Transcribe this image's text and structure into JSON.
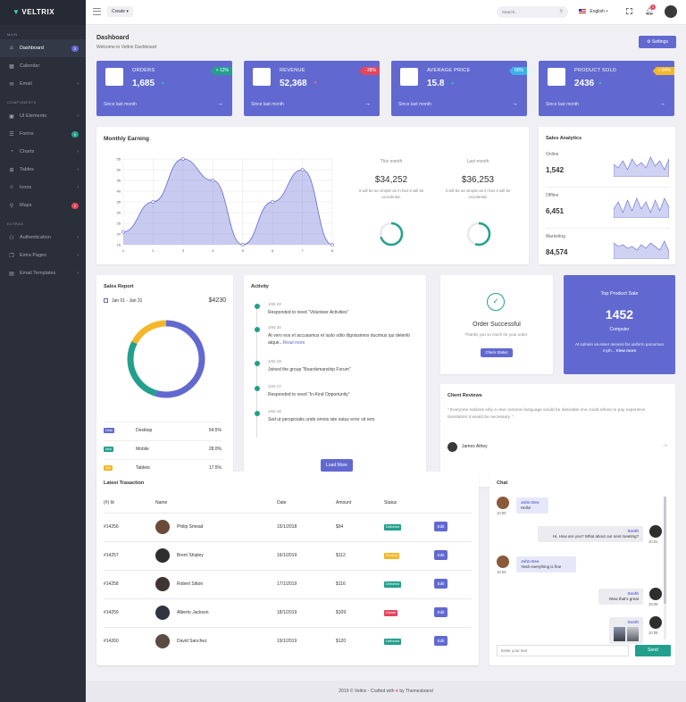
{
  "sidebar": {
    "logo": "VELTRIX",
    "sections": [
      {
        "label": "MAIN",
        "items": [
          {
            "label": "Dashboard",
            "icon": "home-icon",
            "badge": "3",
            "badge_color": "#6169d0",
            "active": true
          },
          {
            "label": "Calendar",
            "icon": "calendar-icon"
          },
          {
            "label": "Email",
            "icon": "mail-icon",
            "chev": true
          }
        ]
      },
      {
        "label": "COMPONENTS",
        "items": [
          {
            "label": "UI Elements",
            "icon": "box-icon",
            "chev": true
          },
          {
            "label": "Forms",
            "icon": "form-icon",
            "badge": "9",
            "badge_color": "#23a08d"
          },
          {
            "label": "Charts",
            "icon": "chart-icon",
            "chev": true
          },
          {
            "label": "Tables",
            "icon": "table-icon",
            "chev": true
          },
          {
            "label": "Icons",
            "icon": "smile-icon",
            "chev": true
          },
          {
            "label": "Maps",
            "icon": "map-pin-icon",
            "badge": "2",
            "badge_color": "#e3465c"
          }
        ]
      },
      {
        "label": "EXTRAS",
        "items": [
          {
            "label": "Authentication",
            "icon": "user-icon",
            "chev": true
          },
          {
            "label": "Extra Pages",
            "icon": "pages-icon",
            "chev": true
          },
          {
            "label": "Email Templates",
            "icon": "template-icon",
            "chev": true
          }
        ]
      }
    ]
  },
  "topbar": {
    "create_label": "Create",
    "search_placeholder": "Search..",
    "language": "English",
    "notification_count": "3"
  },
  "header": {
    "title": "Dashboard",
    "subtitle": "Welcome to Veltrix Dashboard",
    "settings_label": "Settings"
  },
  "stats": [
    {
      "title": "ORDERS",
      "value": "1,685",
      "trend": "up",
      "ribbon": "+ 12%",
      "ribbon_color": "#23a08d",
      "since": "Since last month",
      "icon": "cart-icon"
    },
    {
      "title": "REVENUE",
      "value": "52,368",
      "trend": "down",
      "ribbon": "- 28%",
      "ribbon_color": "#e3465c",
      "since": "Since last month",
      "icon": "copy-icon"
    },
    {
      "title": "AVERAGE PRICE",
      "value": "15.8",
      "trend": "up",
      "ribbon": "00%",
      "ribbon_color": "#3ab3e8",
      "since": "Since last month",
      "icon": "tag-icon"
    },
    {
      "title": "PRODUCT SOLD",
      "value": "2436",
      "trend": "up",
      "ribbon": "+ 84%",
      "ribbon_color": "#f4b728",
      "since": "Since last month",
      "icon": "briefcase-icon"
    }
  ],
  "monthly": {
    "title": "Monthly Earning",
    "this_month_label": "This month",
    "this_month_value": "$34,252",
    "last_month_label": "Last month",
    "last_month_value": "$36,253",
    "desc": "It will be as simple as in fact it will be occidental.",
    "this_month_progress": 0.7,
    "last_month_progress": 0.55
  },
  "chart_data": {
    "type": "area",
    "x": [
      1,
      2,
      3,
      4,
      5,
      6,
      7,
      8
    ],
    "values": [
      21,
      35,
      55,
      45,
      15,
      35,
      50,
      15
    ],
    "ylim": [
      15,
      55
    ],
    "yticks": [
      15,
      20,
      25,
      30,
      35,
      40,
      45,
      50,
      55
    ],
    "grid": true,
    "color": "#6169d0"
  },
  "analytics": {
    "title": "Sales Analytics",
    "rows": [
      {
        "name": "Online",
        "value": "1,542"
      },
      {
        "name": "Offline",
        "value": "6,451"
      },
      {
        "name": "Marketing",
        "value": "84,574"
      }
    ]
  },
  "sales_report": {
    "title": "Sales Report",
    "date_range": "Jan 01 - Jan 31",
    "total": "$4230",
    "rows": [
      {
        "tag": "Desk",
        "name": "Desktop",
        "pct": "54.5%",
        "color": "#6169d0",
        "value": 54.5
      },
      {
        "tag": "Mob",
        "name": "Mobile",
        "pct": "28.0%",
        "color": "#23a08d",
        "value": 28.0
      },
      {
        "tag": "Tab",
        "name": "Tablets",
        "pct": "17.5%",
        "color": "#f4b728",
        "value": 17.5
      }
    ]
  },
  "activity": {
    "title": "Activity",
    "items": [
      {
        "date": "JAN 22",
        "text": "Responded to need “Volunteer Activities”"
      },
      {
        "date": "JAN 20",
        "text": "At vero eos et accusamus et iusto odio dignissimos ducimus qui deleniti atque...",
        "link": "Read more"
      },
      {
        "date": "JAN 19",
        "text": "Joined the group “Boardsmanship Forum”"
      },
      {
        "date": "JAN 17",
        "text": "Responded to need “In-Kind Opportunity”"
      },
      {
        "date": "JAN 16",
        "text": "Sed ut perspiciatis unde omnis iste natus error sit rem."
      }
    ],
    "load_more": "Load More"
  },
  "order": {
    "title": "Order Successful",
    "desc": "Thanks you so much for your order.",
    "button": "Check Status"
  },
  "top_product": {
    "title": "Top Product Sale",
    "value": "1452",
    "name": "Computer",
    "desc": "At solmen va esser necessi far uniform paroomun myth...",
    "link": "View more"
  },
  "reviews": {
    "title": "Client Reviews",
    "quote": "” Everyone realizes why a new common language would be desirable one could refuse to pay expensive translators it would be necessary. ”",
    "author": "James Athey"
  },
  "transactions": {
    "title": "Latest Trasaction",
    "headers": [
      "(#) Id",
      "Name",
      "Date",
      "Amount",
      "Status"
    ],
    "edit_label": "Edit",
    "rows": [
      {
        "id": "#14256",
        "name": "Philip Smead",
        "date": "15/1/2018",
        "amount": "$94",
        "status": "Delivered",
        "status_color": "#23a08d"
      },
      {
        "id": "#14257",
        "name": "Brent Shipley",
        "date": "16/1/2019",
        "amount": "$112",
        "status": "Pending",
        "status_color": "#f4b728"
      },
      {
        "id": "#14258",
        "name": "Robert Sitton",
        "date": "17/1/2019",
        "amount": "$116",
        "status": "Delivered",
        "status_color": "#23a08d"
      },
      {
        "id": "#14259",
        "name": "Alberto Jackson",
        "date": "18/1/2019",
        "amount": "$109",
        "status": "Cancel",
        "status_color": "#e3465c"
      },
      {
        "id": "#14260",
        "name": "David Sanchez",
        "date": "19/1/2019",
        "amount": "$120",
        "status": "Delivered",
        "status_color": "#23a08d"
      }
    ]
  },
  "chat": {
    "title": "Chat",
    "messages": [
      {
        "name": "John Deo",
        "text": "Hello!",
        "time": "10:00",
        "side": "left"
      },
      {
        "name": "Smith",
        "text": "Hi, How are you? What about our next meeting?",
        "time": "10:01",
        "side": "right"
      },
      {
        "name": "John Deo",
        "text": "Yeah everything is fine",
        "time": "10:04",
        "side": "left"
      },
      {
        "name": "Smith",
        "text": "Wow that's great",
        "time": "10:05",
        "side": "right"
      },
      {
        "name": "Smith",
        "text": "",
        "time": "10:08",
        "side": "right"
      }
    ],
    "placeholder": "Enter your text",
    "send_label": "Send"
  },
  "footer": {
    "text": "2019 © Veltrix - Crafted with",
    "by": "by Themesbrand"
  }
}
